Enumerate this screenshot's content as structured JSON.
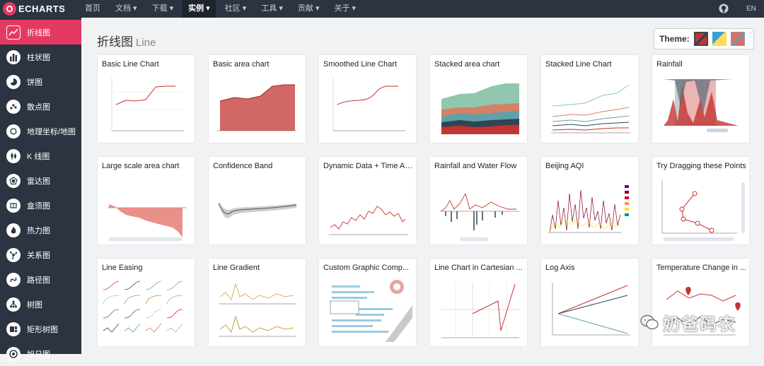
{
  "header": {
    "logo": "ECHARTS",
    "nav": [
      {
        "label": "首页"
      },
      {
        "label": "文档 ▾"
      },
      {
        "label": "下载 ▾"
      },
      {
        "label": "实例 ▾",
        "active": true
      },
      {
        "label": "社区 ▾"
      },
      {
        "label": "工具 ▾"
      },
      {
        "label": "贡献 ▾"
      },
      {
        "label": "关于 ▾"
      }
    ],
    "github_icon": "github-icon",
    "lang": "EN"
  },
  "sidebar": {
    "items": [
      {
        "label": "折线图",
        "icon": "line-chart-icon",
        "active": true
      },
      {
        "label": "柱状图",
        "icon": "bar-chart-icon"
      },
      {
        "label": "饼图",
        "icon": "pie-chart-icon"
      },
      {
        "label": "散点图",
        "icon": "scatter-icon"
      },
      {
        "label": "地理坐标/地图",
        "icon": "map-icon"
      },
      {
        "label": "K 线图",
        "icon": "candlestick-icon"
      },
      {
        "label": "雷达图",
        "icon": "radar-icon"
      },
      {
        "label": "盒须图",
        "icon": "boxplot-icon"
      },
      {
        "label": "热力图",
        "icon": "heatmap-icon"
      },
      {
        "label": "关系图",
        "icon": "graph-icon"
      },
      {
        "label": "路径图",
        "icon": "lines-icon"
      },
      {
        "label": "树图",
        "icon": "tree-icon"
      },
      {
        "label": "矩形树图",
        "icon": "treemap-icon"
      },
      {
        "label": "旭日图",
        "icon": "sunburst-icon"
      }
    ]
  },
  "main": {
    "title": "折线图",
    "subtitle": "Line",
    "theme_label": "Theme:",
    "themes": [
      "theme-default",
      "theme-light",
      "theme-dark"
    ],
    "cards": [
      {
        "title": "Basic Line Chart"
      },
      {
        "title": "Basic area chart"
      },
      {
        "title": "Smoothed Line Chart"
      },
      {
        "title": "Stacked area chart"
      },
      {
        "title": "Stacked Line Chart"
      },
      {
        "title": "Rainfall"
      },
      {
        "title": "Large scale area chart"
      },
      {
        "title": "Confidence Band"
      },
      {
        "title": "Dynamic Data + Time Axis"
      },
      {
        "title": "Rainfall and Water Flow"
      },
      {
        "title": "Beijing AQI"
      },
      {
        "title": "Try Dragging these Points"
      },
      {
        "title": "Line Easing"
      },
      {
        "title": "Line Gradient"
      },
      {
        "title": "Custom Graphic Comp..."
      },
      {
        "title": "Line Chart in Cartesian ..."
      },
      {
        "title": "Log Axis"
      },
      {
        "title": "Temperature Change in ..."
      }
    ]
  },
  "watermark": {
    "text": "奶爸码农",
    "icon": "wechat-icon"
  },
  "colors": {
    "accent": "#e43961",
    "topbar": "#2b3440",
    "background": "#f1f2f4"
  }
}
